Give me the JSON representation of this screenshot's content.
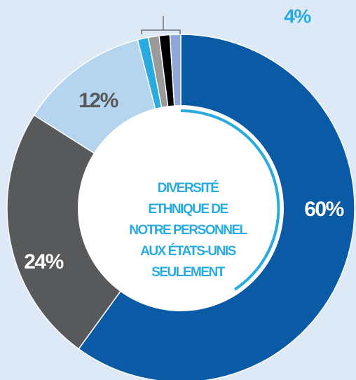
{
  "chart_data": {
    "type": "donut",
    "values": [
      60,
      24,
      12,
      1,
      1,
      1,
      1
    ],
    "value_labels": [
      "60%",
      "24%",
      "12%",
      null,
      null,
      null,
      null
    ],
    "colors": [
      "#0b5aa6",
      "#58595b",
      "#b5d5ef",
      "#29abe2",
      "#9a9a9a",
      "#000000",
      "#8ea6d8"
    ],
    "annotation": "4%",
    "center_text": [
      "DIVERSITÉ",
      "ETHNIQUE DE",
      "NOTRE PERSONNEL",
      "AUX ÉTATS-UNIS",
      "SEULEMENT"
    ]
  }
}
